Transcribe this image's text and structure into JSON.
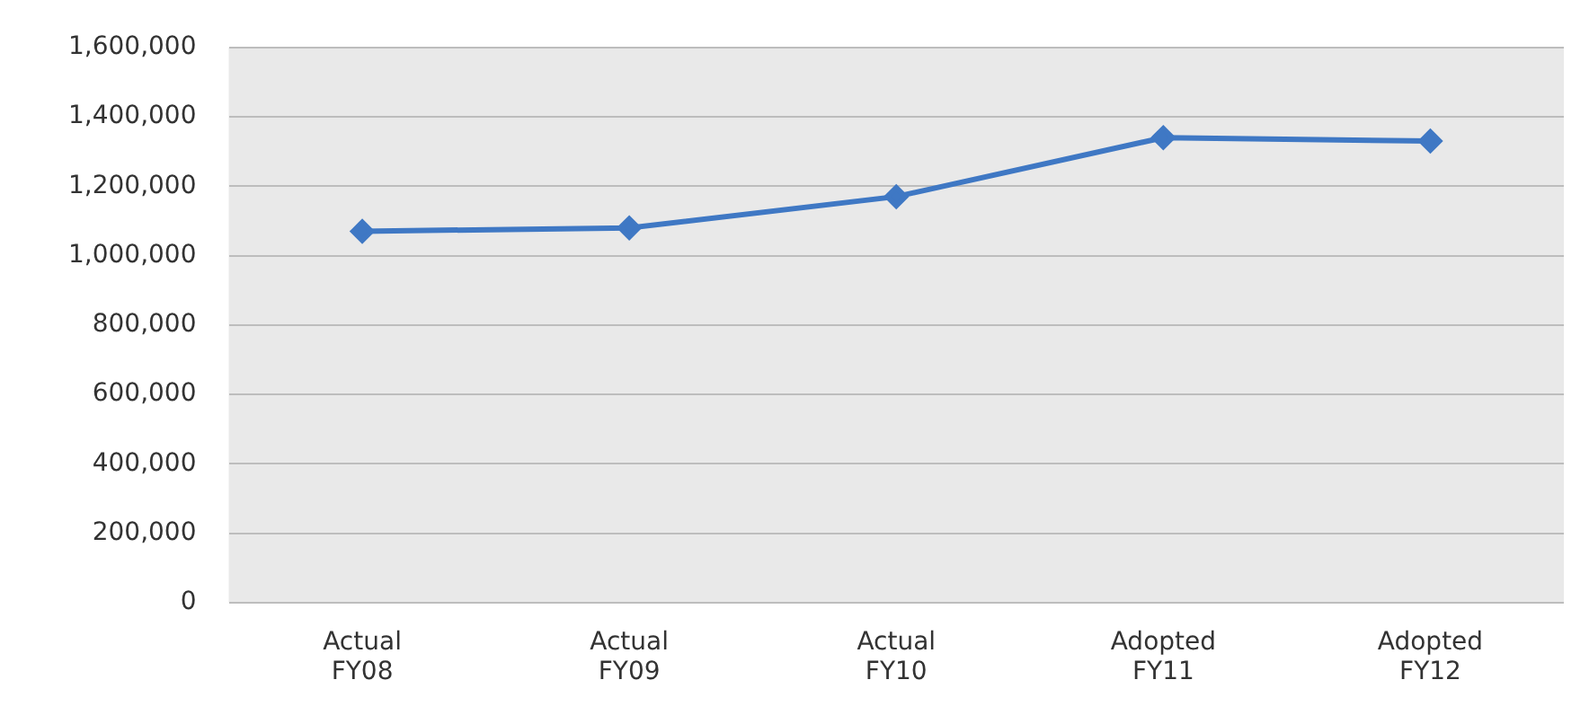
{
  "chart_data": {
    "type": "line",
    "categories": [
      "Actual FY08",
      "Actual FY09",
      "Actual FY10",
      "Adopted FY11",
      "Adopted FY12"
    ],
    "series": [
      {
        "color": "#3f78c4",
        "values": [
          1070000,
          1080000,
          1170000,
          1340000,
          1330000
        ]
      }
    ],
    "ylim": [
      0,
      1600000
    ],
    "yticks": [
      0,
      {
        "value": 200000,
        "label": "200,000"
      },
      {
        "value": 400000,
        "label": "400,000"
      },
      {
        "value": 600000,
        "label": "600,000"
      },
      {
        "value": 800000,
        "label": "800,000"
      },
      {
        "value": 1000000,
        "label": "1,000,000"
      },
      {
        "value": 1200000,
        "label": "1,200,000"
      },
      {
        "value": 1400000,
        "label": "1,400,000"
      },
      {
        "value": 1600000,
        "label": "1,600,000"
      }
    ],
    "grid": "y",
    "legend": false,
    "marker": "diamond",
    "line_style": "solid"
  }
}
